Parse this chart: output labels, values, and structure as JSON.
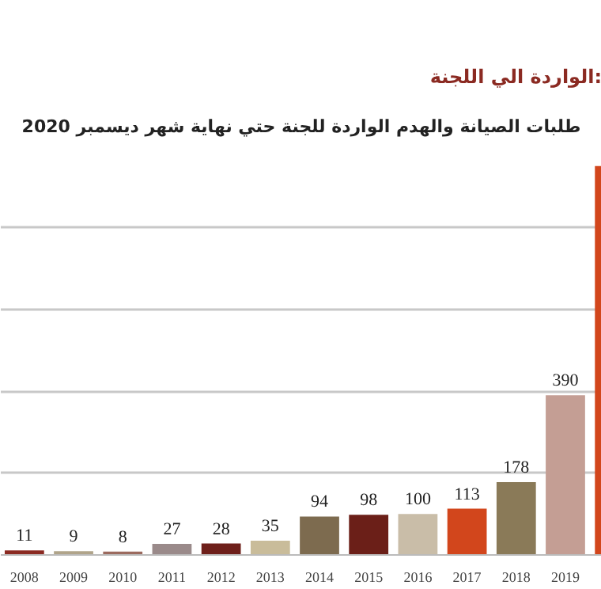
{
  "chart_data": {
    "type": "bar",
    "title": "الواردة الي اللجنة:",
    "subtitle": "طلبات الصيانة والهدم الواردة للجنة حتي نهاية شهر ديسمبر 2020",
    "categories": [
      "2008",
      "2009",
      "2010",
      "2011",
      "2012",
      "2013",
      "2014",
      "2015",
      "2016",
      "2017",
      "2018",
      "2019",
      null
    ],
    "values": [
      11,
      9,
      8,
      27,
      28,
      35,
      94,
      98,
      100,
      113,
      178,
      390,
      950
    ],
    "colors": [
      "#8b2a22",
      "#b0a48a",
      "#9b6a5e",
      "#9a8a8a",
      "#6e1f1a",
      "#c9bc9a",
      "#7d6b4f",
      "#6b1f18",
      "#c9bda8",
      "#d2461c",
      "#8a7a58",
      "#c49e94",
      "#d2461c"
    ],
    "value_labels": [
      "11",
      "9",
      "8",
      "27",
      "28",
      "35",
      "94",
      "98",
      "100",
      "113",
      "178",
      "390",
      null
    ],
    "grid": "y",
    "tick_labels": "x"
  }
}
